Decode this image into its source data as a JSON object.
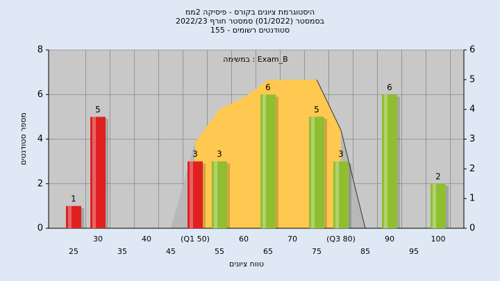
{
  "chart_data": {
    "type": "bar",
    "title": [
      "היסטוגרמת ציונים בקורס - פיסיקה 2ממ",
      "בסמסטר  (01/2022)  סמסטר חורף 2022/23",
      "סטודנטים רשומים - 155"
    ],
    "annotation": "במשימה : Exam_B",
    "x_label": "טווח ציונים",
    "y_label": "מספר סטודנטים",
    "categories": [
      "25",
      "30",
      "35",
      "40",
      "45",
      "(Q1 50)",
      "55",
      "60",
      "65",
      "70",
      "75",
      "(Q3 80)",
      "85",
      "90",
      "95",
      "100"
    ],
    "values": [
      1,
      5,
      null,
      null,
      null,
      3,
      3,
      null,
      6,
      null,
      5,
      3,
      null,
      6,
      null,
      2
    ],
    "colors": [
      "#e02020",
      "#e02020",
      null,
      null,
      null,
      "#e02020",
      "#8fbf30",
      null,
      "#8fbf30",
      null,
      "#8fbf30",
      "#8fbf30",
      null,
      "#8fbf30",
      null,
      "#8fbf30"
    ],
    "ylim": [
      0,
      8
    ],
    "yticks": [
      0,
      2,
      4,
      6,
      8
    ],
    "y2lim": [
      0,
      6
    ],
    "y2ticks": [
      0,
      1,
      2,
      3,
      4,
      5,
      6
    ],
    "grid": true,
    "distribution": {
      "axis": "y2",
      "x": [
        45,
        50,
        55,
        60,
        65,
        70,
        75,
        80,
        85
      ],
      "values": [
        0,
        2.9,
        4.0,
        4.4,
        5.0,
        5.0,
        5.0,
        3.3,
        0
      ],
      "color": "#ffc850",
      "tail_color": "#b8b8b8"
    }
  }
}
